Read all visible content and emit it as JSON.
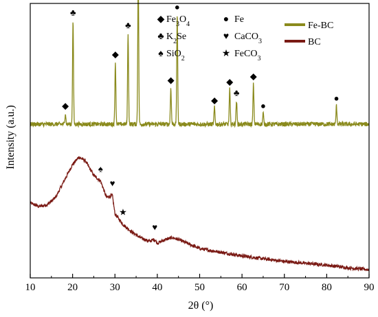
{
  "chart_data": {
    "type": "line",
    "xlabel": "2θ (°)",
    "ylabel": "Intensity (a.u.)",
    "xlim": [
      10,
      90
    ],
    "x_ticks": [
      "10",
      "20",
      "30",
      "40",
      "50",
      "60",
      "70",
      "80",
      "90"
    ],
    "y_ticks_shown": false,
    "grid": false,
    "legend_position": "top-right",
    "series": [
      {
        "name": "Fe-BC",
        "color": "#8a8a1c",
        "baseline": 0.5,
        "noise": 0.12,
        "peaks": [
          {
            "x": 18.3,
            "h": 0.6
          },
          {
            "x": 20.1,
            "h": 5.7
          },
          {
            "x": 30.1,
            "h": 3.4
          },
          {
            "x": 33.1,
            "h": 5.0
          },
          {
            "x": 35.5,
            "h": 8.2
          },
          {
            "x": 43.2,
            "h": 2.0
          },
          {
            "x": 44.7,
            "h": 6.0
          },
          {
            "x": 53.5,
            "h": 0.9
          },
          {
            "x": 57.1,
            "h": 1.9
          },
          {
            "x": 58.7,
            "h": 1.3
          },
          {
            "x": 62.7,
            "h": 2.2
          },
          {
            "x": 65.0,
            "h": 0.6
          },
          {
            "x": 82.3,
            "h": 1.0
          }
        ]
      },
      {
        "name": "BC",
        "color": "#7a1a14",
        "points": [
          [
            10,
            4.1
          ],
          [
            12,
            3.9
          ],
          [
            14,
            4.0
          ],
          [
            16,
            4.4
          ],
          [
            18,
            5.3
          ],
          [
            20,
            6.2
          ],
          [
            21.5,
            6.6
          ],
          [
            23,
            6.4
          ],
          [
            25,
            5.6
          ],
          [
            26.6,
            5.3
          ],
          [
            28,
            4.4
          ],
          [
            29.4,
            4.5
          ],
          [
            30,
            3.5
          ],
          [
            32,
            2.9
          ],
          [
            34,
            2.5
          ],
          [
            36,
            2.2
          ],
          [
            38,
            2.0
          ],
          [
            39.4,
            2.1
          ],
          [
            40,
            1.9
          ],
          [
            42,
            2.1
          ],
          [
            43.5,
            2.2
          ],
          [
            45,
            2.1
          ],
          [
            48,
            1.8
          ],
          [
            50,
            1.6
          ],
          [
            55,
            1.4
          ],
          [
            60,
            1.2
          ],
          [
            65,
            1.05
          ],
          [
            70,
            0.9
          ],
          [
            75,
            0.8
          ],
          [
            80,
            0.7
          ],
          [
            85,
            0.55
          ],
          [
            90,
            0.45
          ]
        ],
        "noise": 0.09
      }
    ],
    "phase_legend": [
      {
        "symbol": "◆",
        "label": "Fe3O4"
      },
      {
        "symbol": "●",
        "label": "Fe"
      },
      {
        "symbol": "♣",
        "label": "K2Se"
      },
      {
        "symbol": "♥",
        "label": "CaCO3"
      },
      {
        "symbol": "♠",
        "label": "SiO2"
      },
      {
        "symbol": "★",
        "label": "FeCO3"
      }
    ],
    "peak_markers": [
      {
        "series": "Fe-BC",
        "x": 18.3,
        "symbol": "◆"
      },
      {
        "series": "Fe-BC",
        "x": 20.1,
        "symbol": "♣"
      },
      {
        "series": "Fe-BC",
        "x": 30.1,
        "symbol": "◆"
      },
      {
        "series": "Fe-BC",
        "x": 33.1,
        "symbol": "♣"
      },
      {
        "series": "Fe-BC",
        "x": 35.5,
        "symbol": "◆"
      },
      {
        "series": "Fe-BC",
        "x": 43.2,
        "symbol": "◆"
      },
      {
        "series": "Fe-BC",
        "x": 44.7,
        "symbol": "●"
      },
      {
        "series": "Fe-BC",
        "x": 53.5,
        "symbol": "◆"
      },
      {
        "series": "Fe-BC",
        "x": 57.1,
        "symbol": "◆"
      },
      {
        "series": "Fe-BC",
        "x": 58.7,
        "symbol": "♣"
      },
      {
        "series": "Fe-BC",
        "x": 62.7,
        "symbol": "◆"
      },
      {
        "series": "Fe-BC",
        "x": 65.0,
        "symbol": "●"
      },
      {
        "series": "Fe-BC",
        "x": 82.3,
        "symbol": "●"
      },
      {
        "series": "BC",
        "x": 26.6,
        "symbol": "♠"
      },
      {
        "series": "BC",
        "x": 29.4,
        "symbol": "♥"
      },
      {
        "series": "BC",
        "x": 31.9,
        "symbol": "★"
      },
      {
        "series": "BC",
        "x": 39.4,
        "symbol": "♥"
      }
    ]
  }
}
